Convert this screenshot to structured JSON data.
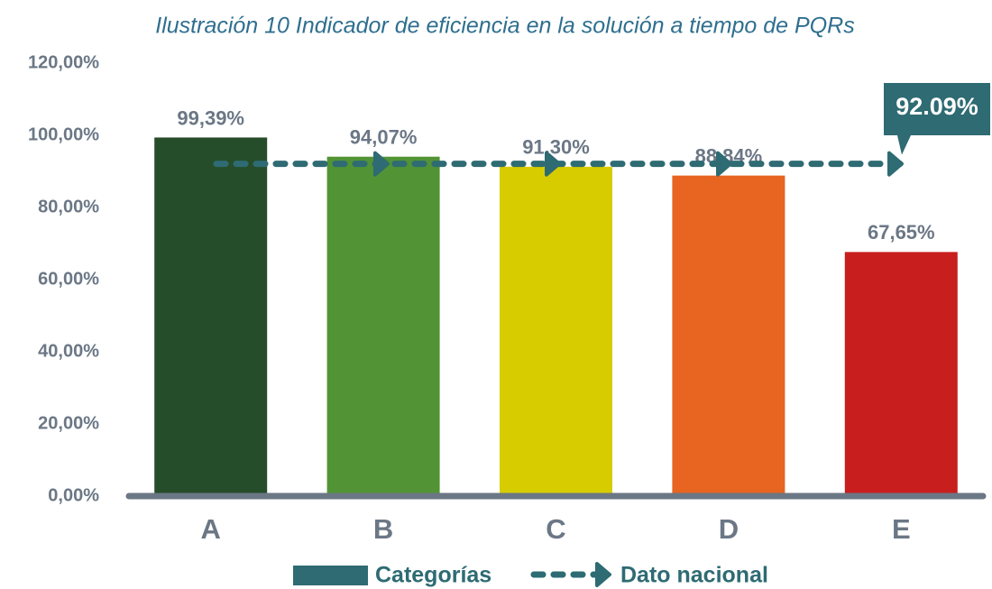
{
  "chart_data": {
    "type": "bar",
    "title": "Ilustración 10 Indicador de eficiencia en la solución a tiempo de PQRs",
    "categories": [
      "A",
      "B",
      "C",
      "D",
      "E"
    ],
    "series": [
      {
        "name": "Categorías",
        "color": "#2e6b73",
        "values": [
          99.39,
          94.07,
          91.3,
          88.84,
          67.65
        ],
        "value_labels": [
          "99,39%",
          "94,07%",
          "91,30%",
          "88,84%",
          "67,65%"
        ],
        "colors": [
          "#264d29",
          "#529435",
          "#d7cc00",
          "#e76520",
          "#c81e1e"
        ]
      },
      {
        "name": "Dato nacional",
        "type": "hline",
        "color": "#2e6b73",
        "value": 92.09,
        "value_label": "92.09%"
      }
    ],
    "ylim": [
      0,
      120
    ],
    "yticks": [
      {
        "value": 0,
        "label": "0,00%"
      },
      {
        "value": 20,
        "label": "20,00%"
      },
      {
        "value": 40,
        "label": "40,00%"
      },
      {
        "value": 60,
        "label": "60,00%"
      },
      {
        "value": 80,
        "label": "80,00%"
      },
      {
        "value": 100,
        "label": "100,00%"
      },
      {
        "value": 120,
        "label": "120,00%"
      }
    ],
    "grid": false,
    "legend": "bottom"
  }
}
